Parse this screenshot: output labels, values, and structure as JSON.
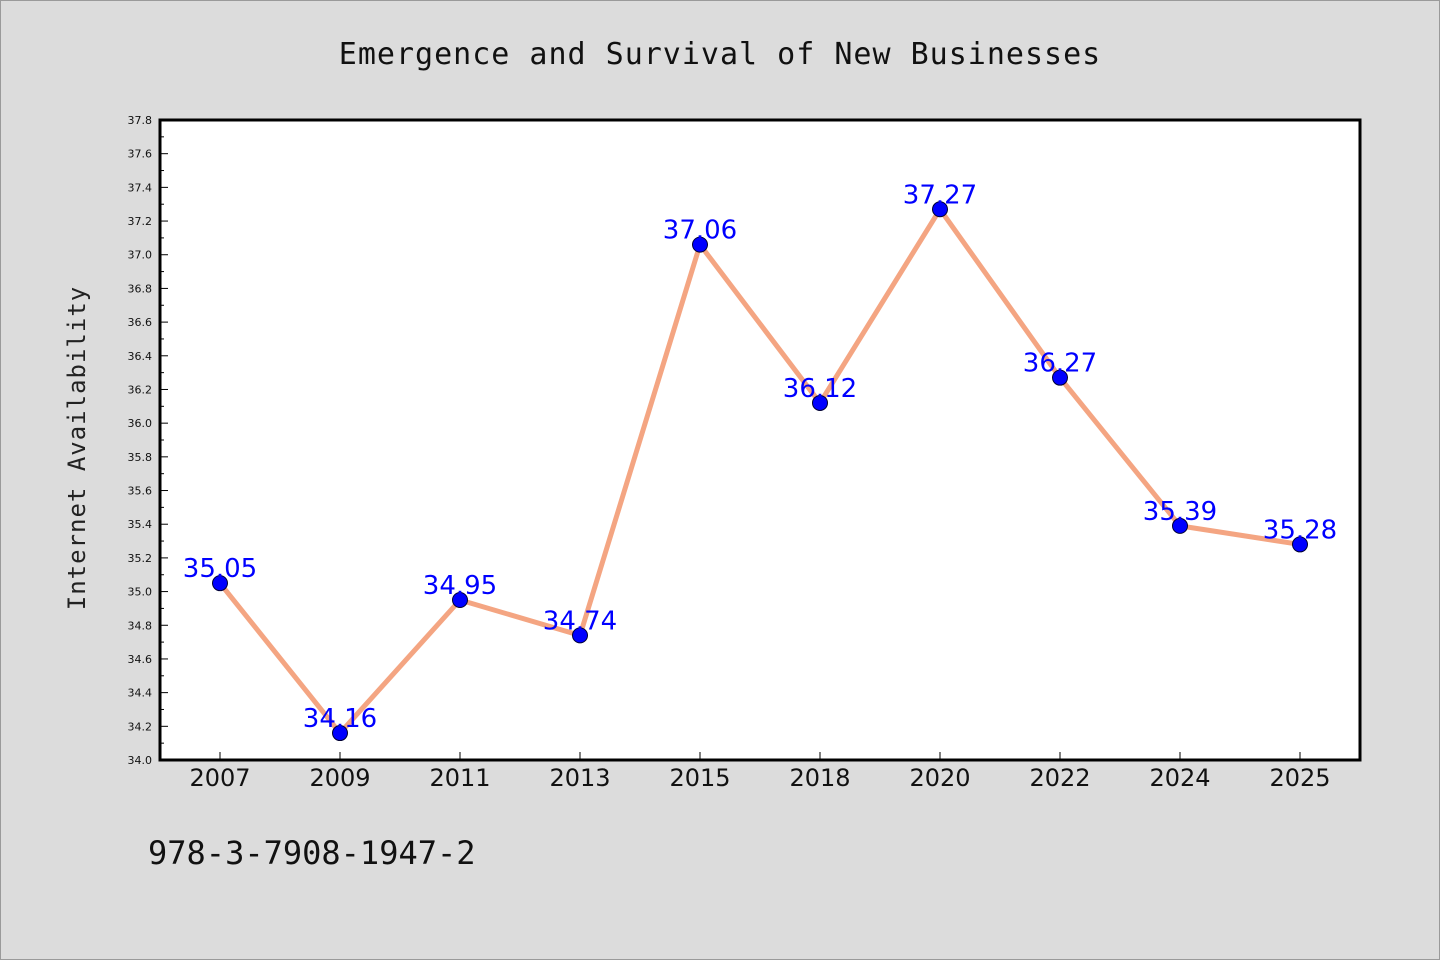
{
  "chart_data": {
    "type": "line",
    "title": "Emergence and Survival of New Businesses",
    "xlabel": "",
    "ylabel": "Internet Availability",
    "categories": [
      "2007",
      "2009",
      "2011",
      "2013",
      "2015",
      "2018",
      "2020",
      "2022",
      "2024",
      "2025"
    ],
    "series": [
      {
        "values": [
          35.05,
          34.16,
          34.95,
          34.74,
          37.06,
          36.12,
          37.27,
          36.27,
          35.39,
          35.28
        ],
        "line_color": "#f4a582",
        "marker_color": "#0000ff"
      }
    ],
    "value_labels": [
      "35.05",
      "34.16",
      "34.95",
      "34.74",
      "37.06",
      "36.12",
      "37.27",
      "36.27",
      "35.39",
      "35.28"
    ],
    "ylim": [
      34.0,
      37.8
    ],
    "yticks": [
      "34.0",
      "34.2",
      "34.4",
      "34.6",
      "34.8",
      "35.0",
      "35.2",
      "35.4",
      "35.6",
      "35.8",
      "36.0",
      "36.2",
      "36.4",
      "36.6",
      "36.8",
      "37.0",
      "37.2",
      "37.4",
      "37.6",
      "37.8"
    ],
    "grid": false,
    "label_color": "#0000ff"
  },
  "annotation": "978-3-7908-1947-2",
  "colors": {
    "background": "#dcdcdc",
    "plot_background": "#ffffff"
  }
}
